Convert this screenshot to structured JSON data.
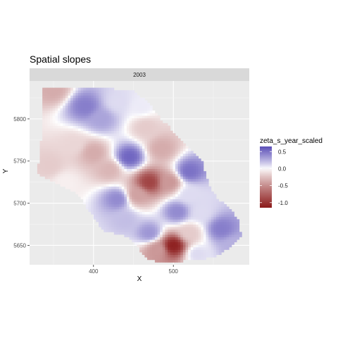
{
  "chart_data": {
    "type": "heatmap",
    "title": "Spatial slopes",
    "facet": "2003",
    "xlabel": "X",
    "ylabel": "Y",
    "xlim": [
      320,
      595
    ],
    "ylim": [
      5627,
      5645
    ],
    "x_ticks": [
      400,
      500
    ],
    "y_ticks": [
      5650,
      5700,
      5750,
      5800
    ],
    "grid": true,
    "legend": {
      "title": "zeta_s_year_scaled",
      "placement": "right",
      "range": [
        -1.15,
        0.65
      ],
      "ticks": [
        0.5,
        0.0,
        -0.5,
        -1.0
      ],
      "tick_labels": [
        "0.5",
        "0.0",
        "-0.5",
        "-1.0"
      ],
      "low_color": "#8b1a1a",
      "mid_color": "#ffffff",
      "high_color": "#5b4fb8"
    },
    "region_outline": [
      [
        337,
        5838
      ],
      [
        360,
        5838
      ],
      [
        385,
        5837
      ],
      [
        420,
        5836
      ],
      [
        448,
        5834
      ],
      [
        470,
        5818
      ],
      [
        482,
        5802
      ],
      [
        495,
        5790
      ],
      [
        515,
        5768
      ],
      [
        535,
        5752
      ],
      [
        545,
        5720
      ],
      [
        555,
        5705
      ],
      [
        570,
        5695
      ],
      [
        582,
        5680
      ],
      [
        585,
        5660
      ],
      [
        560,
        5640
      ],
      [
        545,
        5635
      ],
      [
        500,
        5630
      ],
      [
        468,
        5632
      ],
      [
        445,
        5660
      ],
      [
        412,
        5668
      ],
      [
        395,
        5690
      ],
      [
        380,
        5712
      ],
      [
        360,
        5720
      ],
      [
        330,
        5735
      ],
      [
        335,
        5780
      ],
      [
        335,
        5820
      ]
    ],
    "control_points": [
      {
        "x": 350,
        "y": 5835,
        "z": -0.35
      },
      {
        "x": 390,
        "y": 5815,
        "z": 0.45
      },
      {
        "x": 410,
        "y": 5800,
        "z": 0.3
      },
      {
        "x": 430,
        "y": 5820,
        "z": 0.1
      },
      {
        "x": 460,
        "y": 5815,
        "z": 0.05
      },
      {
        "x": 375,
        "y": 5770,
        "z": -0.15
      },
      {
        "x": 400,
        "y": 5760,
        "z": -0.35
      },
      {
        "x": 420,
        "y": 5740,
        "z": -0.3
      },
      {
        "x": 445,
        "y": 5755,
        "z": 0.55
      },
      {
        "x": 465,
        "y": 5790,
        "z": -0.2
      },
      {
        "x": 485,
        "y": 5765,
        "z": -0.35
      },
      {
        "x": 470,
        "y": 5725,
        "z": -0.9
      },
      {
        "x": 455,
        "y": 5710,
        "z": -0.4
      },
      {
        "x": 495,
        "y": 5725,
        "z": -0.45
      },
      {
        "x": 520,
        "y": 5738,
        "z": 0.5
      },
      {
        "x": 520,
        "y": 5710,
        "z": 0.1
      },
      {
        "x": 430,
        "y": 5705,
        "z": 0.4
      },
      {
        "x": 440,
        "y": 5680,
        "z": 0.2
      },
      {
        "x": 470,
        "y": 5665,
        "z": 0.35
      },
      {
        "x": 505,
        "y": 5690,
        "z": 0.4
      },
      {
        "x": 535,
        "y": 5690,
        "z": 0.1
      },
      {
        "x": 560,
        "y": 5670,
        "z": 0.45
      },
      {
        "x": 520,
        "y": 5665,
        "z": -0.2
      },
      {
        "x": 500,
        "y": 5650,
        "z": -1.1
      },
      {
        "x": 480,
        "y": 5645,
        "z": -0.45
      },
      {
        "x": 530,
        "y": 5640,
        "z": 0.1
      },
      {
        "x": 575,
        "y": 5650,
        "z": 0.25
      },
      {
        "x": 345,
        "y": 5745,
        "z": -0.2
      },
      {
        "x": 365,
        "y": 5725,
        "z": -0.05
      }
    ]
  }
}
